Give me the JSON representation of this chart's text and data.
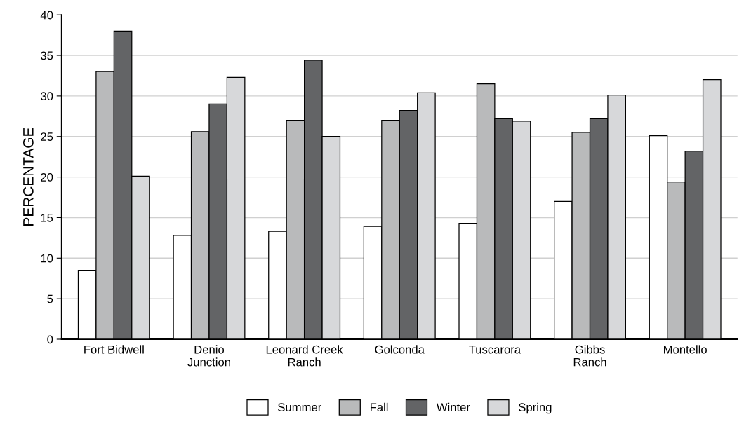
{
  "chart_data": {
    "type": "bar",
    "ylabel": "PERCENTAGE",
    "categories": [
      "Fort Bidwell",
      "Denio\nJunction",
      "Leonard Creek\nRanch",
      "Golconda",
      "Tuscarora",
      "Gibbs\nRanch",
      "Montello"
    ],
    "series": [
      {
        "name": "Summer",
        "color": "#ffffff",
        "values": [
          8.5,
          12.8,
          13.3,
          13.9,
          14.3,
          17.0,
          25.1
        ]
      },
      {
        "name": "Fall",
        "color": "#b9babb",
        "values": [
          33.0,
          25.6,
          27.0,
          27.0,
          31.5,
          25.5,
          19.4
        ]
      },
      {
        "name": "Winter",
        "color": "#636466",
        "values": [
          38.0,
          29.0,
          34.4,
          28.2,
          27.2,
          27.2,
          23.2
        ]
      },
      {
        "name": "Spring",
        "color": "#d7d8da",
        "values": [
          20.1,
          32.3,
          25.0,
          30.4,
          26.9,
          30.1,
          32.0
        ]
      }
    ],
    "ylim": [
      0,
      40
    ],
    "yticks": [
      0,
      5,
      10,
      15,
      20,
      25,
      30,
      35,
      40
    ],
    "grid": "y",
    "legend": "bottom"
  }
}
